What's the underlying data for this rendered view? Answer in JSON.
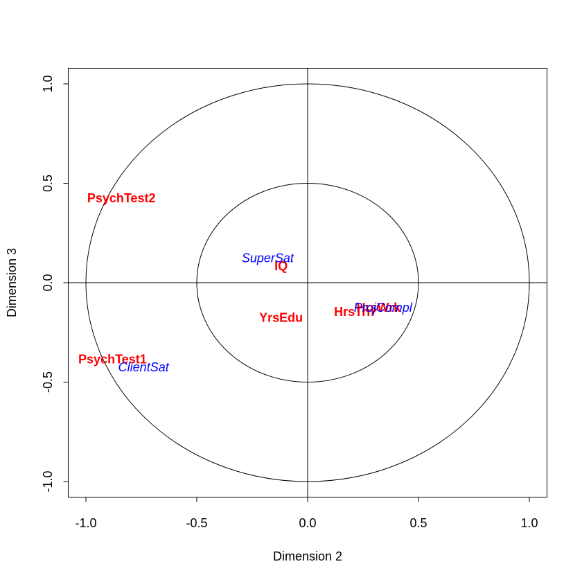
{
  "chart_data": {
    "type": "scatter",
    "title": "",
    "xlabel": "Dimension  2",
    "ylabel": "Dimension  3",
    "xlim": [
      -1.08,
      1.08
    ],
    "ylim": [
      -1.08,
      1.08
    ],
    "x_ticks": [
      -1.0,
      -0.5,
      0.0,
      0.5,
      1.0
    ],
    "y_ticks": [
      -1.0,
      -0.5,
      0.0,
      0.5,
      1.0
    ],
    "x_tick_labels": [
      "-1.0",
      "-0.5",
      "0.0",
      "0.5",
      "1.0"
    ],
    "y_tick_labels": [
      "-1.0",
      "-0.5",
      "0.0",
      "0.5",
      "1.0"
    ],
    "circles": [
      0.5,
      1.0
    ],
    "reference_lines": {
      "x": 0,
      "y": 0
    },
    "grid": false,
    "series": [
      {
        "color": "#ff0000",
        "style": "bold",
        "points": [
          {
            "label": "PsychTest2",
            "x": -0.84,
            "y": 0.42
          },
          {
            "label": "IQ",
            "x": -0.12,
            "y": 0.08
          },
          {
            "label": "YrsEdu",
            "x": -0.12,
            "y": -0.18
          },
          {
            "label": "HrsTrn",
            "x": 0.21,
            "y": -0.15
          },
          {
            "label": "HrsWrk",
            "x": 0.32,
            "y": -0.13
          },
          {
            "label": "PsychTest1",
            "x": -0.88,
            "y": -0.39
          }
        ]
      },
      {
        "color": "#0000ff",
        "style": "italic",
        "points": [
          {
            "label": "SuperSat",
            "x": -0.18,
            "y": 0.12
          },
          {
            "label": "ProjCompl",
            "x": 0.34,
            "y": -0.13
          },
          {
            "label": "ClientSat",
            "x": -0.74,
            "y": -0.43
          }
        ]
      }
    ]
  }
}
